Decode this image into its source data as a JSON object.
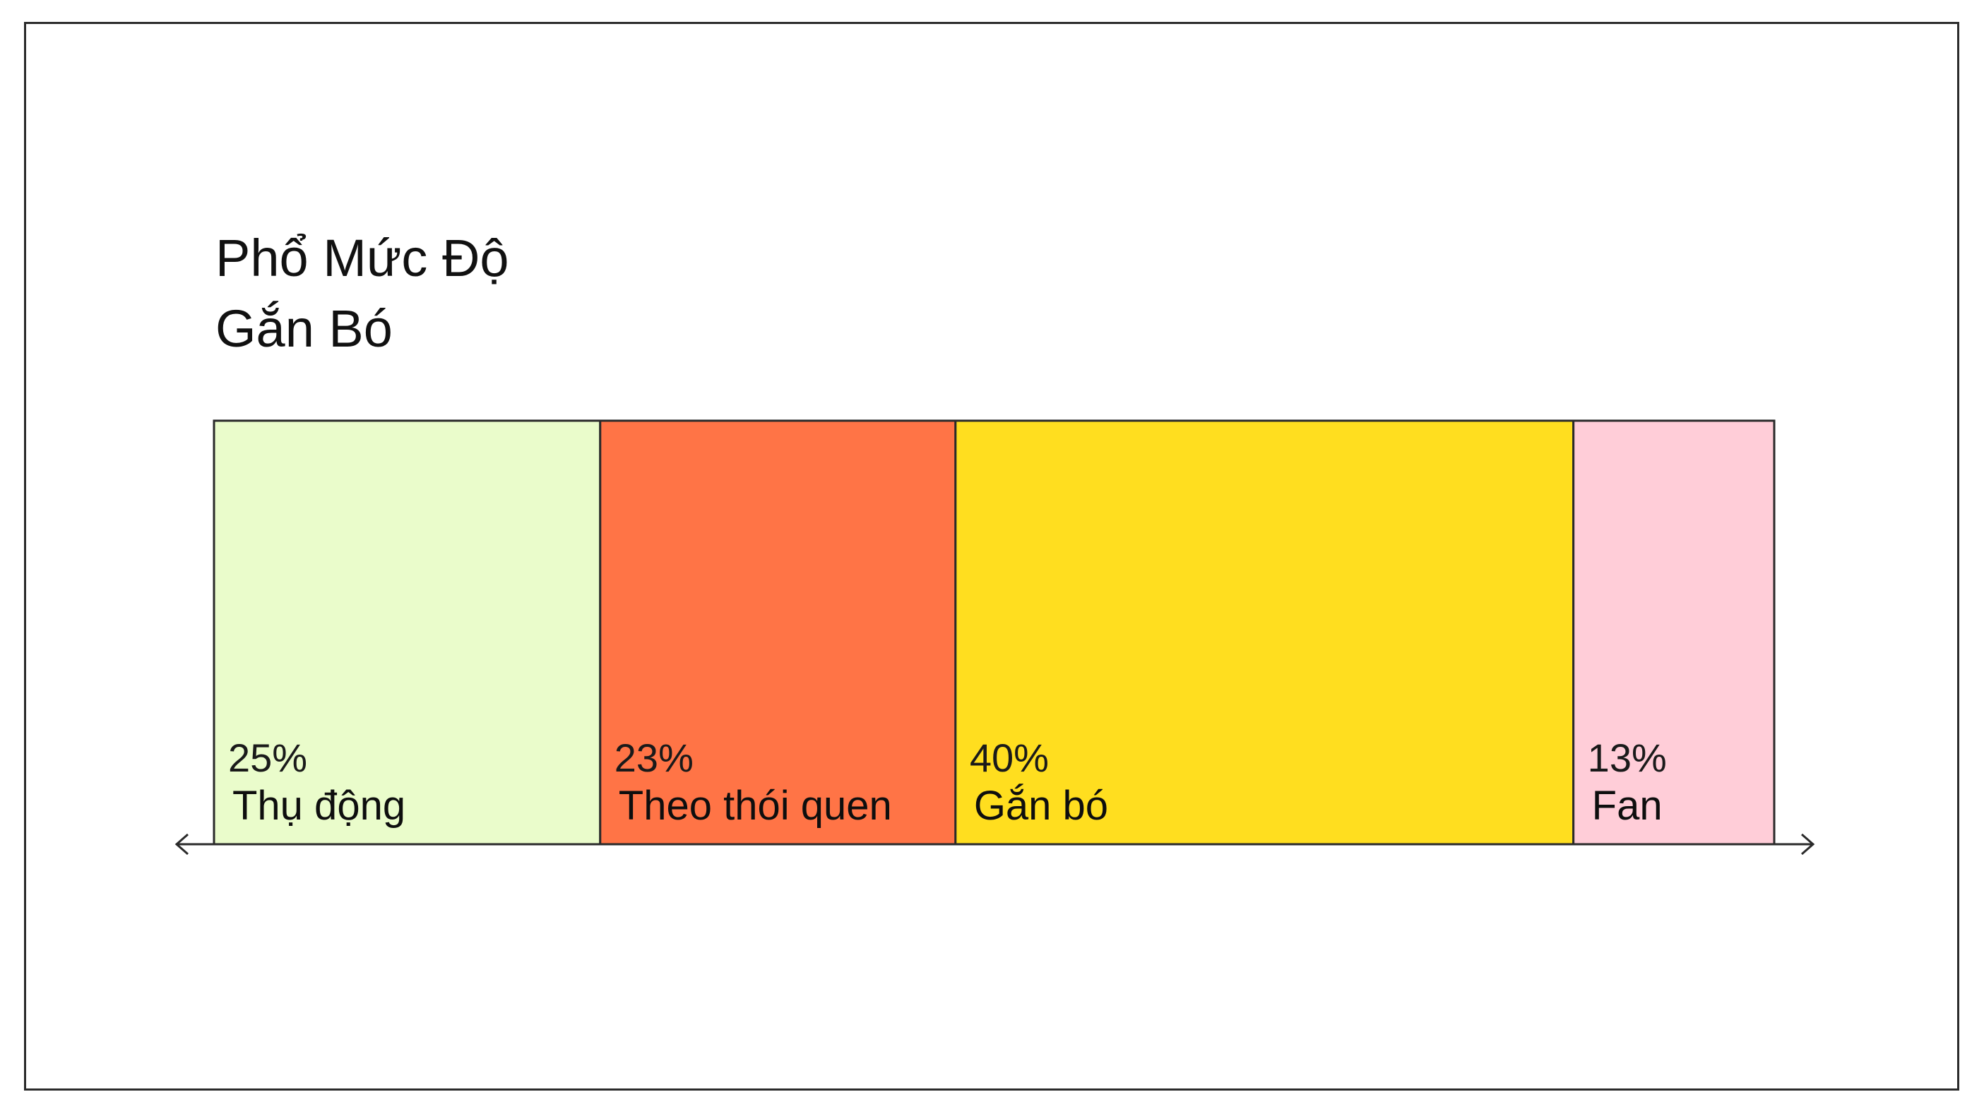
{
  "chart_data": {
    "type": "bar",
    "orientation": "horizontal-stacked",
    "title_lines": [
      "Phổ Mức Độ",
      "Gắn Bó"
    ],
    "categories": [
      "Thụ động",
      "Theo thói quen",
      "Gắn bó",
      "Fan"
    ],
    "values": [
      25,
      23,
      40,
      13
    ],
    "value_labels": [
      "25%",
      "23%",
      "40%",
      "13%"
    ],
    "colors": [
      "#eafccb",
      "#ff7446",
      "#ffde1f",
      "#ffcdd8"
    ],
    "unit": "%",
    "axis": "double-arrow",
    "legend": "none",
    "grid": false
  }
}
